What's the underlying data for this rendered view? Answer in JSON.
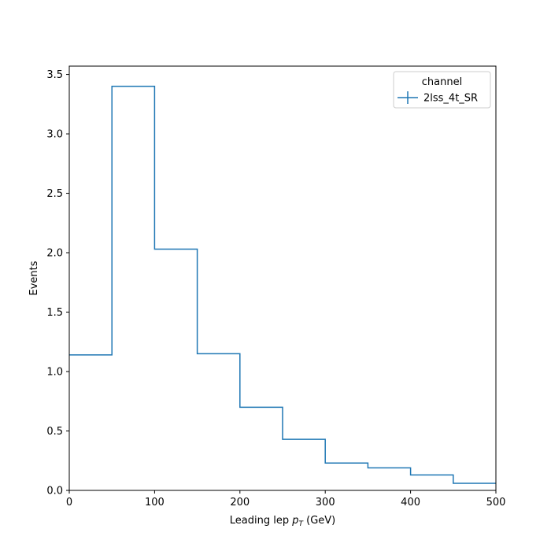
{
  "chart_data": {
    "type": "step-histogram",
    "xlabel_main": "Leading lep ",
    "xlabel_var": "p",
    "xlabel_sub": "T",
    "xlabel_unit": " (GeV)",
    "ylabel": "Events",
    "xlim": [
      0,
      500
    ],
    "ylim": [
      0,
      3.57
    ],
    "x_ticks": [
      0,
      100,
      200,
      300,
      400,
      500
    ],
    "y_ticks": [
      0.0,
      0.5,
      1.0,
      1.5,
      2.0,
      2.5,
      3.0,
      3.5
    ],
    "y_tick_labels": [
      "0.0",
      "0.5",
      "1.0",
      "1.5",
      "2.0",
      "2.5",
      "3.0",
      "3.5"
    ],
    "x_tick_labels": [
      "0",
      "100",
      "200",
      "300",
      "400",
      "500"
    ],
    "bin_edges": [
      0,
      50,
      100,
      150,
      200,
      250,
      300,
      350,
      400,
      450,
      500
    ],
    "series": [
      {
        "name": "2lss_4t_SR",
        "color": "#1f77b4",
        "values": [
          1.14,
          3.4,
          2.03,
          1.15,
          0.7,
          0.43,
          0.23,
          0.19,
          0.13,
          0.06
        ]
      }
    ],
    "legend": {
      "title": "channel",
      "placement": "top-right"
    },
    "grid": false
  }
}
